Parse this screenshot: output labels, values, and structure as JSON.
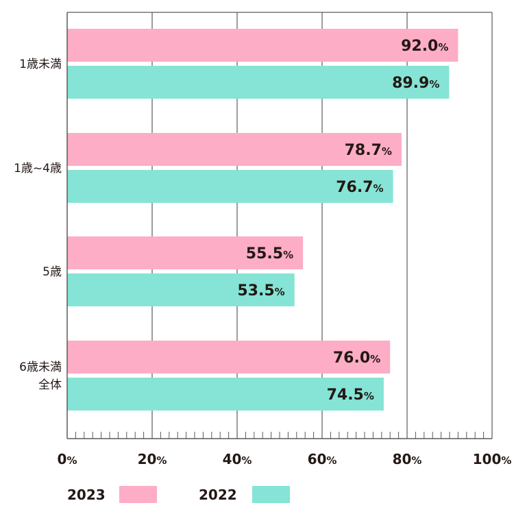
{
  "chart_data": {
    "type": "bar",
    "orientation": "horizontal",
    "categories": [
      [
        "1歳未満"
      ],
      [
        "1歳~4歳"
      ],
      [
        "5歳"
      ],
      [
        "6歳未満",
        "全体"
      ]
    ],
    "series": [
      {
        "name": "2023",
        "color": "#fdadc5",
        "values": [
          92.0,
          78.7,
          55.5,
          76.0
        ]
      },
      {
        "name": "2022",
        "color": "#85e4d5",
        "values": [
          89.9,
          76.7,
          53.5,
          74.5
        ]
      }
    ],
    "xlim": [
      0,
      100
    ],
    "xticks": [
      0,
      20,
      40,
      60,
      80,
      100
    ],
    "value_suffix": "%",
    "grid": true,
    "legend_position": "bottom-left",
    "title": "",
    "xlabel": "",
    "ylabel": ""
  }
}
